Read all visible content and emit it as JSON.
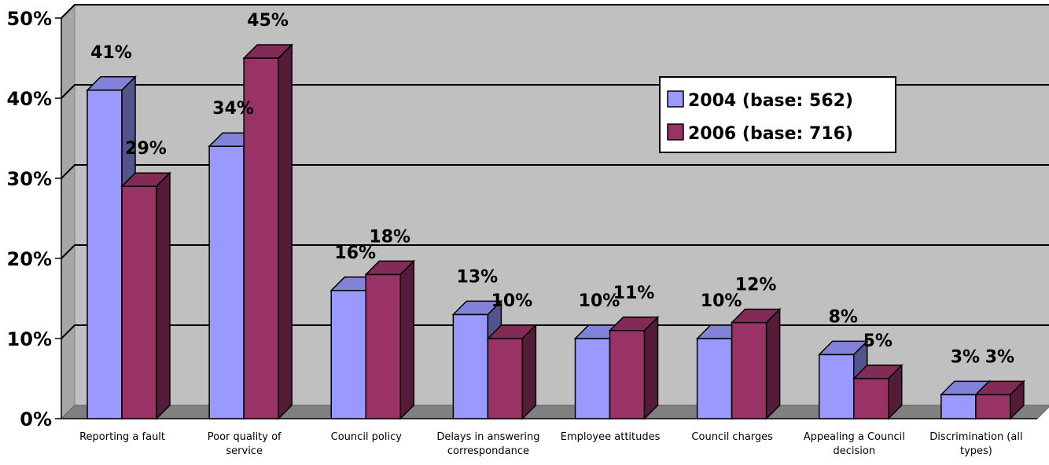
{
  "chart_data": {
    "type": "bar",
    "categories": [
      [
        "Reporting a fault"
      ],
      [
        "Poor quality of",
        "service"
      ],
      [
        "Council policy"
      ],
      [
        "Delays in answering",
        "correspondance"
      ],
      [
        "Employee attitudes"
      ],
      [
        "Council charges"
      ],
      [
        "Appealing a Council",
        "decision"
      ],
      [
        "Discrimination (all",
        "types)"
      ]
    ],
    "series": [
      {
        "name": "2004 (base: 562)",
        "color": "#9999ff",
        "values": [
          41,
          34,
          16,
          13,
          10,
          10,
          8,
          3
        ],
        "labels": [
          "41%",
          "34%",
          "16%",
          "13%",
          "10%",
          "10%",
          "8%",
          "3%"
        ]
      },
      {
        "name": "2006 (base: 716)",
        "color": "#993366",
        "values": [
          29,
          45,
          18,
          10,
          11,
          12,
          5,
          3
        ],
        "labels": [
          "29%",
          "45%",
          "18%",
          "10%",
          "11%",
          "12%",
          "5%",
          "3%"
        ]
      }
    ],
    "y_ticks": [
      "0%",
      "10%",
      "20%",
      "30%",
      "40%",
      "50%"
    ],
    "ylim": [
      0,
      50
    ],
    "y_unit": "%",
    "grid": true,
    "legend_position": "top-right",
    "plot_background": "#c0c0c0"
  }
}
